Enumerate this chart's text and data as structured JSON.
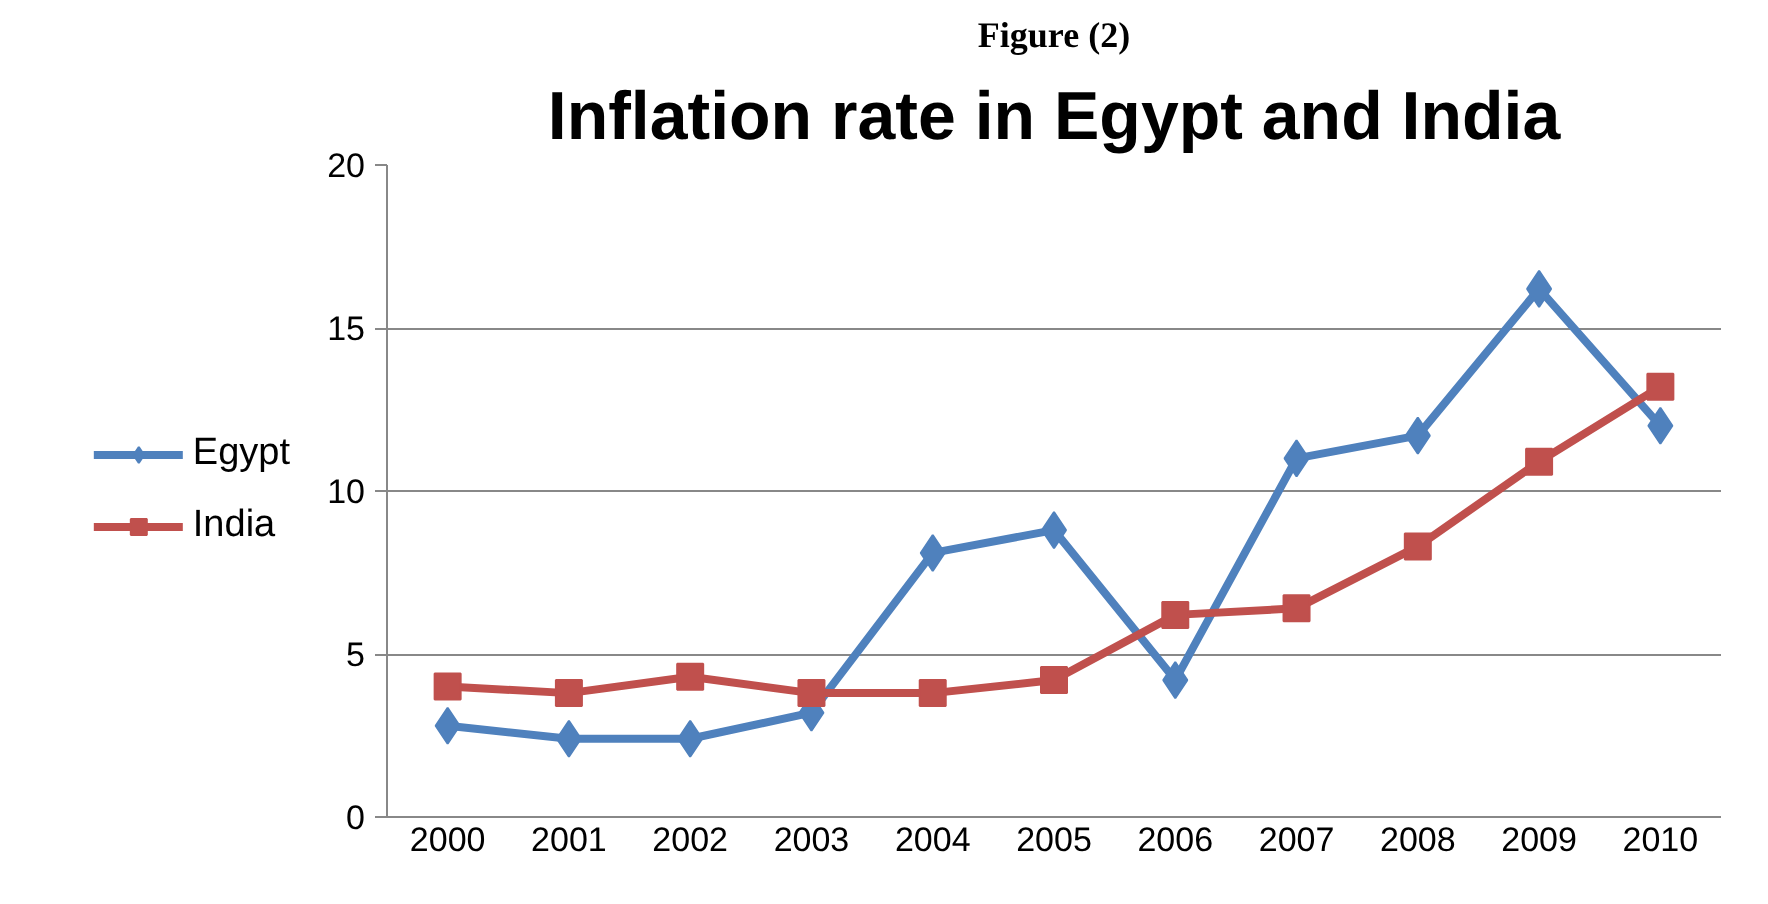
{
  "chart_data": {
    "type": "line",
    "title": "Inflation rate in Egypt and India",
    "annotations": [
      "Figure (2)"
    ],
    "categories": [
      "2000",
      "2001",
      "2002",
      "2003",
      "2004",
      "2005",
      "2006",
      "2007",
      "2008",
      "2009",
      "2010"
    ],
    "series": [
      {
        "name": "Egypt",
        "color": "#4f81bd",
        "marker": "diamond",
        "values": [
          2.8,
          2.4,
          2.4,
          3.2,
          8.1,
          8.8,
          4.2,
          11.0,
          11.7,
          16.2,
          12.0
        ]
      },
      {
        "name": "India",
        "color": "#c0504d",
        "marker": "square",
        "values": [
          4.0,
          3.8,
          4.3,
          3.8,
          3.8,
          4.2,
          6.2,
          6.4,
          8.3,
          10.9,
          13.2
        ]
      }
    ],
    "ylim": [
      0,
      20
    ],
    "yticks": [
      0,
      5,
      10,
      15,
      20
    ],
    "grid": "y",
    "legend": "left",
    "line_style": "solid"
  }
}
